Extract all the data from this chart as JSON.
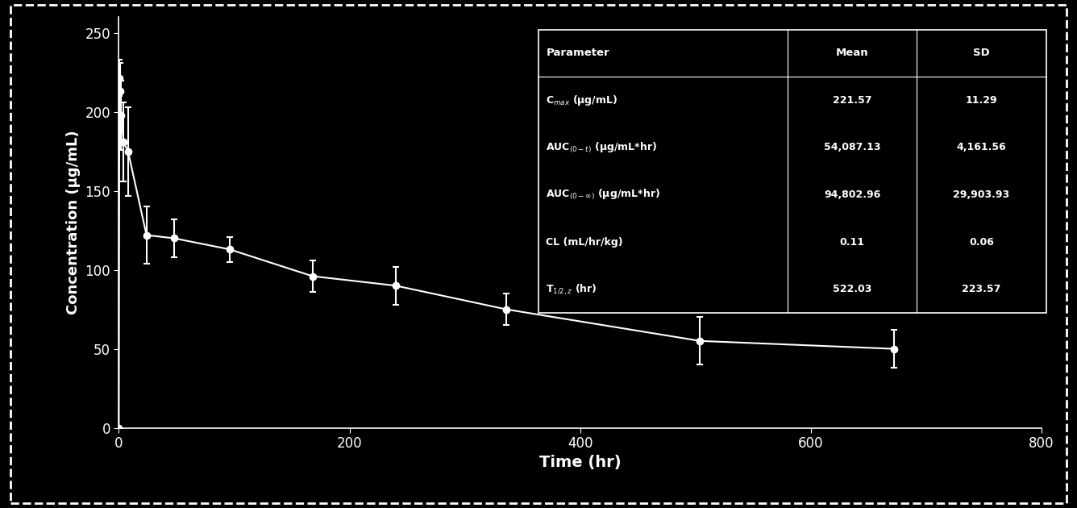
{
  "bg_color": "#000000",
  "fg_color": "#ffffff",
  "title": "",
  "xlabel": "Time (hr)",
  "ylabel": "Concentration (μg/mL)",
  "xlim": [
    0,
    800
  ],
  "ylim": [
    0,
    260
  ],
  "xticks": [
    0,
    200,
    400,
    600,
    800
  ],
  "yticks": [
    0,
    50,
    100,
    150,
    200,
    250
  ],
  "x": [
    0,
    0.5,
    1,
    2,
    4,
    8,
    24,
    48,
    96,
    168,
    240,
    336,
    504,
    672
  ],
  "y": [
    0,
    221.57,
    213,
    198,
    181,
    175,
    122,
    120,
    113,
    96,
    90,
    75,
    55,
    50
  ],
  "yerr": [
    0,
    11.29,
    18,
    22,
    25,
    28,
    18,
    12,
    8,
    10,
    12,
    10,
    15,
    12
  ],
  "table_params": [
    [
      "Parameter",
      "Mean",
      "SD"
    ],
    [
      "C$_{max}$ (μg/mL)",
      "221.57",
      "11.29"
    ],
    [
      "AUC$_{(0-t)}$ (μg/mL*hr)",
      "54,087.13",
      "4,161.56"
    ],
    [
      "AUC$_{(0-∞)}$ (μg/mL*hr)",
      "94,802.96",
      "29,903.93"
    ],
    [
      "CL (mL/hr/kg)",
      "0.11",
      "0.06"
    ],
    [
      "T$_{1/2,z}$ (hr)",
      "522.03",
      "223.57"
    ]
  ]
}
